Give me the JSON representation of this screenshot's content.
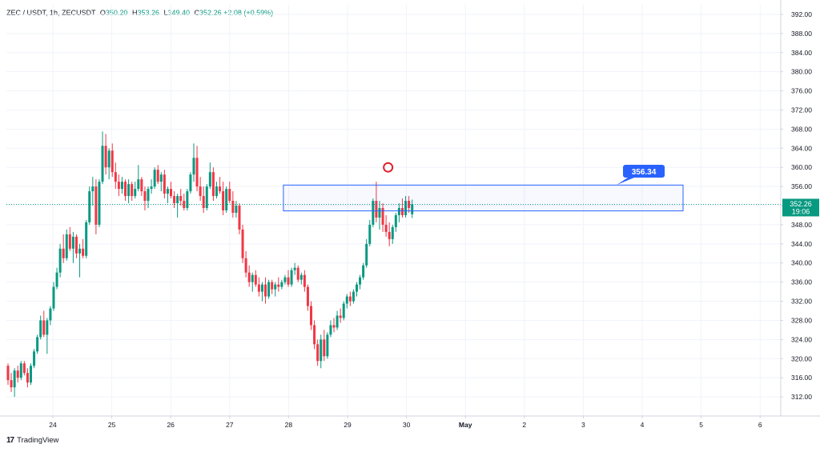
{
  "header": {
    "symbol": "ZEC / USDT, 1h, ZECUSDT",
    "open_label": "O",
    "open": "350.20",
    "high_label": "H",
    "high": "353.26",
    "low_label": "L",
    "low": "349.40",
    "close_label": "C",
    "close": "352.26",
    "change": "+2.08 (+0.59%)"
  },
  "footer": {
    "brand": "TradingView",
    "logo_text": "17"
  },
  "colors": {
    "up": "#089981",
    "down": "#f23645",
    "accent": "#2962ff",
    "circle": "#e0202e"
  },
  "chart_data": {
    "type": "candlestick",
    "timeframe": "1h",
    "ylim": [
      308,
      394
    ],
    "y_ticks": [
      "392.00",
      "388.00",
      "384.00",
      "380.00",
      "376.00",
      "372.00",
      "368.00",
      "364.00",
      "360.00",
      "356.00",
      "352.00",
      "348.00",
      "344.00",
      "340.00",
      "336.00",
      "332.00",
      "328.00",
      "324.00",
      "320.00",
      "316.00",
      "312.00"
    ],
    "x_ticks": [
      "24",
      "25",
      "26",
      "27",
      "28",
      "29",
      "30",
      "May",
      "2",
      "3",
      "4",
      "5",
      "6"
    ],
    "last_price": "352.26",
    "countdown": "19:06",
    "rectangle": {
      "top": 356.3,
      "bottom": 350.9
    },
    "annotation": {
      "label": "356.34",
      "value": 356.34
    },
    "marker_circle": {
      "price": 360.0,
      "note": "red circle marker above May 1 high"
    },
    "candles": [
      [
        318.5,
        319.0,
        314.5,
        315.5
      ],
      [
        315.5,
        317.0,
        313.0,
        314.0
      ],
      [
        314.0,
        318.0,
        312.0,
        317.5
      ],
      [
        317.5,
        318.5,
        315.0,
        316.0
      ],
      [
        316.0,
        319.5,
        315.5,
        319.0
      ],
      [
        319.0,
        319.5,
        316.5,
        317.0
      ],
      [
        317.0,
        318.0,
        314.0,
        315.0
      ],
      [
        315.0,
        319.0,
        314.5,
        318.5
      ],
      [
        318.5,
        322.0,
        318.0,
        321.5
      ],
      [
        321.5,
        325.0,
        321.0,
        324.5
      ],
      [
        324.5,
        329.0,
        324.0,
        328.0
      ],
      [
        328.0,
        330.0,
        324.5,
        325.0
      ],
      [
        325.0,
        328.5,
        321.0,
        328.0
      ],
      [
        328.0,
        331.0,
        327.0,
        330.5
      ],
      [
        330.5,
        336.0,
        330.0,
        335.0
      ],
      [
        335.0,
        339.0,
        334.5,
        338.0
      ],
      [
        338.0,
        344.0,
        337.0,
        343.0
      ],
      [
        343.0,
        346.0,
        340.0,
        341.0
      ],
      [
        341.0,
        347.0,
        340.5,
        346.0
      ],
      [
        346.0,
        347.5,
        342.5,
        343.0
      ],
      [
        343.0,
        346.5,
        340.0,
        345.5
      ],
      [
        345.5,
        346.0,
        341.0,
        342.0
      ],
      [
        342.0,
        344.0,
        337.0,
        343.0
      ],
      [
        343.0,
        345.0,
        341.0,
        341.5
      ],
      [
        341.5,
        349.0,
        341.0,
        348.5
      ],
      [
        348.5,
        356.0,
        348.0,
        355.0
      ],
      [
        355.0,
        358.0,
        352.0,
        356.0
      ],
      [
        356.0,
        357.5,
        346.0,
        348.0
      ],
      [
        348.0,
        357.5,
        347.5,
        357.0
      ],
      [
        357.0,
        367.5,
        356.5,
        364.5
      ],
      [
        364.5,
        367.0,
        358.5,
        360.0
      ],
      [
        360.0,
        364.0,
        357.5,
        363.5
      ],
      [
        363.5,
        365.0,
        358.0,
        359.0
      ],
      [
        359.0,
        361.0,
        355.5,
        357.0
      ],
      [
        357.0,
        358.5,
        354.0,
        355.5
      ],
      [
        355.5,
        358.0,
        354.5,
        357.0
      ],
      [
        357.0,
        357.5,
        353.0,
        354.0
      ],
      [
        354.0,
        357.5,
        352.5,
        356.5
      ],
      [
        356.5,
        357.0,
        353.0,
        354.0
      ],
      [
        354.0,
        357.0,
        353.5,
        355.5
      ],
      [
        355.5,
        360.5,
        355.0,
        357.5
      ],
      [
        357.5,
        358.0,
        354.0,
        355.0
      ],
      [
        355.0,
        356.0,
        351.0,
        353.0
      ],
      [
        353.0,
        356.0,
        351.5,
        355.5
      ],
      [
        355.5,
        357.5,
        354.5,
        356.0
      ],
      [
        356.0,
        360.0,
        355.5,
        359.5
      ],
      [
        359.5,
        360.5,
        356.5,
        357.0
      ],
      [
        357.0,
        359.0,
        355.0,
        358.5
      ],
      [
        358.5,
        359.5,
        353.5,
        354.5
      ],
      [
        354.5,
        356.0,
        352.5,
        355.5
      ],
      [
        355.5,
        357.0,
        353.5,
        354.0
      ],
      [
        354.0,
        355.0,
        351.5,
        352.5
      ],
      [
        352.5,
        354.5,
        349.5,
        354.0
      ],
      [
        354.0,
        355.5,
        352.0,
        353.0
      ],
      [
        353.0,
        354.5,
        351.0,
        351.5
      ],
      [
        351.5,
        355.5,
        351.0,
        355.0
      ],
      [
        355.0,
        359.0,
        354.5,
        358.5
      ],
      [
        358.5,
        365.0,
        357.0,
        362.0
      ],
      [
        362.0,
        364.5,
        355.0,
        356.0
      ],
      [
        356.0,
        358.0,
        353.0,
        354.0
      ],
      [
        354.0,
        356.0,
        350.5,
        351.5
      ],
      [
        351.5,
        356.5,
        351.0,
        356.0
      ],
      [
        356.0,
        361.0,
        355.5,
        359.0
      ],
      [
        359.0,
        360.0,
        353.0,
        354.0
      ],
      [
        354.0,
        357.0,
        353.5,
        356.0
      ],
      [
        356.0,
        358.0,
        354.5,
        355.0
      ],
      [
        355.0,
        357.0,
        350.0,
        351.0
      ],
      [
        351.0,
        356.0,
        350.5,
        355.5
      ],
      [
        355.5,
        357.0,
        352.5,
        353.0
      ],
      [
        353.0,
        355.0,
        349.5,
        350.5
      ],
      [
        350.5,
        353.0,
        349.5,
        352.0
      ],
      [
        352.0,
        352.5,
        346.0,
        347.0
      ],
      [
        347.0,
        348.0,
        340.0,
        341.0
      ],
      [
        341.0,
        342.5,
        337.0,
        338.0
      ],
      [
        338.0,
        339.5,
        335.0,
        336.0
      ],
      [
        336.0,
        338.0,
        334.0,
        337.5
      ],
      [
        337.5,
        338.5,
        335.0,
        335.5
      ],
      [
        335.5,
        337.0,
        333.0,
        334.0
      ],
      [
        334.0,
        336.0,
        332.0,
        335.5
      ],
      [
        335.5,
        337.0,
        331.5,
        333.0
      ],
      [
        333.0,
        336.5,
        332.5,
        336.0
      ],
      [
        336.0,
        336.5,
        333.5,
        334.5
      ],
      [
        334.5,
        336.0,
        333.0,
        335.5
      ],
      [
        335.5,
        337.0,
        334.0,
        335.0
      ],
      [
        335.0,
        336.5,
        334.5,
        336.0
      ],
      [
        336.0,
        337.5,
        335.5,
        337.0
      ],
      [
        337.0,
        338.5,
        335.0,
        335.5
      ],
      [
        335.5,
        339.0,
        335.0,
        338.5
      ],
      [
        338.5,
        340.0,
        337.5,
        339.0
      ],
      [
        339.0,
        339.5,
        336.0,
        336.5
      ],
      [
        336.5,
        338.0,
        335.5,
        337.5
      ],
      [
        337.5,
        338.5,
        334.0,
        335.0
      ],
      [
        335.0,
        335.5,
        330.0,
        331.0
      ],
      [
        331.0,
        332.0,
        326.0,
        327.0
      ],
      [
        327.0,
        328.0,
        322.0,
        323.0
      ],
      [
        323.0,
        324.0,
        318.5,
        319.5
      ],
      [
        319.5,
        325.0,
        318.0,
        324.0
      ],
      [
        324.0,
        326.0,
        319.5,
        320.5
      ],
      [
        320.5,
        325.5,
        320.0,
        325.0
      ],
      [
        325.0,
        328.0,
        324.5,
        327.0
      ],
      [
        327.0,
        328.5,
        325.5,
        326.5
      ],
      [
        326.5,
        330.0,
        326.0,
        329.0
      ],
      [
        329.0,
        330.5,
        327.5,
        328.5
      ],
      [
        328.5,
        332.0,
        328.0,
        331.5
      ],
      [
        331.5,
        333.5,
        330.5,
        333.0
      ],
      [
        333.0,
        334.0,
        331.0,
        332.0
      ],
      [
        332.0,
        334.5,
        331.5,
        334.0
      ],
      [
        334.0,
        336.0,
        333.0,
        335.5
      ],
      [
        335.5,
        337.5,
        334.5,
        337.0
      ],
      [
        337.0,
        340.0,
        336.5,
        339.5
      ],
      [
        339.5,
        345.0,
        339.0,
        344.0
      ],
      [
        344.0,
        349.0,
        343.5,
        348.0
      ],
      [
        348.0,
        353.5,
        347.5,
        353.0
      ],
      [
        353.0,
        357.0,
        348.5,
        349.5
      ],
      [
        349.5,
        353.0,
        347.0,
        351.5
      ],
      [
        351.5,
        352.5,
        346.5,
        348.0
      ],
      [
        348.0,
        350.0,
        345.5,
        346.5
      ],
      [
        346.5,
        348.5,
        343.5,
        345.0
      ],
      [
        345.0,
        348.0,
        344.0,
        347.5
      ],
      [
        347.5,
        350.5,
        346.5,
        350.0
      ],
      [
        350.0,
        352.5,
        348.5,
        351.5
      ],
      [
        351.5,
        353.5,
        349.5,
        350.0
      ],
      [
        350.0,
        354.0,
        349.5,
        353.0
      ],
      [
        353.0,
        354.0,
        350.5,
        351.5
      ],
      [
        350.2,
        353.26,
        349.4,
        352.26
      ]
    ]
  }
}
